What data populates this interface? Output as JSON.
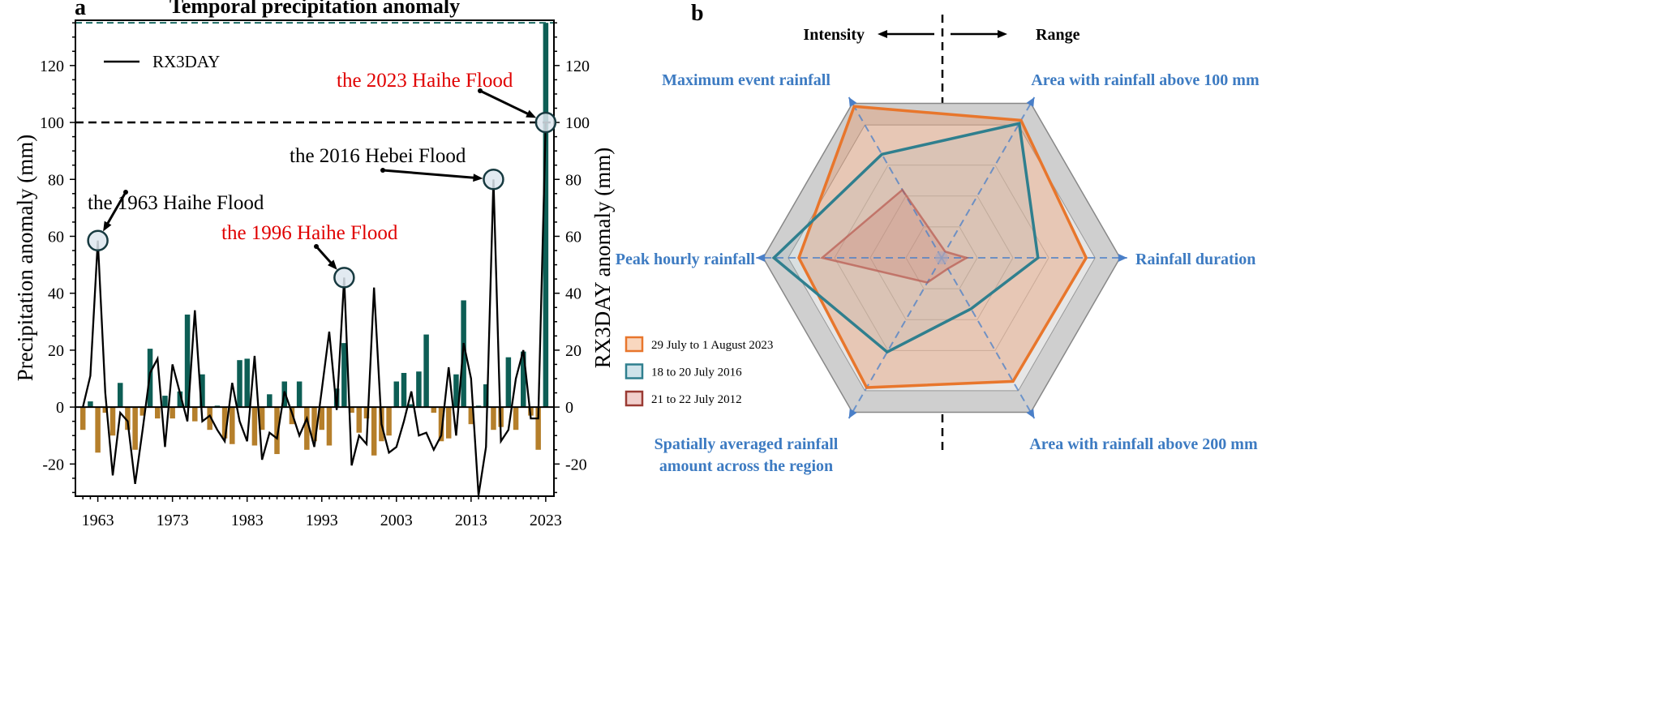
{
  "chart_data": [
    {
      "panel_label": "a",
      "type": "bar+line",
      "title": "Temporal precipitation anomaly",
      "xlabel": "",
      "ylabel": "Precipitation anomaly (mm)",
      "ylabel_right": "RX3DAY anomaly (mm)",
      "xlim": [
        1960,
        2024.1
      ],
      "ylim": [
        -31.3,
        135.9
      ],
      "xticks": [
        1963,
        1973,
        1983,
        1993,
        2003,
        2013,
        2023
      ],
      "yticks": [
        -20,
        0,
        20,
        40,
        60,
        80,
        100,
        120
      ],
      "legend": {
        "entries": [
          "RX3DAY"
        ],
        "placement": "top-left"
      },
      "reference_lines": [
        {
          "y": 100,
          "style": "black-dashed"
        },
        {
          "y": 135,
          "style": "teal-dashed"
        }
      ],
      "colors": {
        "positive": "#0d5e55",
        "negative": "#b57f2b",
        "line": "#000000"
      },
      "years": [
        1961,
        1962,
        1963,
        1964,
        1965,
        1966,
        1967,
        1968,
        1969,
        1970,
        1971,
        1972,
        1973,
        1974,
        1975,
        1976,
        1977,
        1978,
        1979,
        1980,
        1981,
        1982,
        1983,
        1984,
        1985,
        1986,
        1987,
        1988,
        1989,
        1990,
        1991,
        1992,
        1993,
        1994,
        1995,
        1996,
        1997,
        1998,
        1999,
        2000,
        2001,
        2002,
        2003,
        2004,
        2005,
        2006,
        2007,
        2008,
        2009,
        2010,
        2011,
        2012,
        2013,
        2014,
        2015,
        2016,
        2017,
        2018,
        2019,
        2020,
        2021,
        2022,
        2023
      ],
      "precipitation_anomaly": [
        -8,
        2,
        -16,
        -2,
        -10,
        8.5,
        -8,
        -15,
        -3,
        20.5,
        -4,
        4,
        -4,
        5.5,
        32.5,
        -5,
        11.5,
        -8,
        0.5,
        -11,
        -13,
        16.5,
        17,
        -13.5,
        -8,
        4.5,
        -16.5,
        9,
        -6,
        9,
        -15,
        -12,
        -8,
        -13.5,
        6.5,
        22.5,
        -2,
        -9,
        -4,
        -17,
        -12,
        -10,
        9,
        12,
        1,
        12.5,
        25.5,
        -2,
        -12,
        -11,
        11.5,
        37.5,
        -6,
        0.5,
        8,
        -8,
        -7,
        17.5,
        -8,
        19.5,
        -3,
        -15,
        135
      ],
      "rx3day_anomaly": [
        0,
        11,
        58.5,
        5,
        -24,
        -2,
        -5,
        -27,
        -8,
        12,
        17,
        -14,
        15,
        5,
        -5,
        34,
        -5,
        -3,
        -8,
        -12,
        8.5,
        -5,
        -12,
        18,
        -18.5,
        -9,
        -11,
        5.5,
        -2,
        -10,
        -4,
        -14,
        6,
        26.5,
        -1,
        45.5,
        -20.5,
        -10,
        -13,
        42,
        -6,
        -16,
        -14,
        -5,
        5.5,
        -10,
        -9,
        -15,
        -10,
        14,
        -10,
        22.5,
        10,
        -31,
        -14,
        80,
        -12,
        -8,
        10,
        20,
        -4,
        -4,
        100
      ],
      "annotations": [
        {
          "text": "the 1963 Haihe Flood",
          "year": 1963,
          "value": 58.5,
          "color": "#000000"
        },
        {
          "text": "the 1996 Haihe Flood",
          "year": 1996,
          "value": 45.5,
          "color": "#e00000"
        },
        {
          "text": "the 2016 Hebei Flood",
          "year": 2016,
          "value": 80,
          "color": "#000000"
        },
        {
          "text": "the 2023 Haihe Flood",
          "year": 2023,
          "value": 100,
          "color": "#e00000"
        }
      ]
    },
    {
      "panel_label": "b",
      "type": "radar",
      "top_labels": {
        "left": "Intensity",
        "right": "Range"
      },
      "axes": [
        "Rainfall  duration",
        "Area with rainfall above 100 mm",
        "Maximum event rainfall",
        "Peak hourly rainfall",
        "Spatially averaged rainfall amount across the region",
        "Area with rainfall above 200 mm"
      ],
      "axis_label_lines": [
        [
          "Rainfall  duration"
        ],
        [
          "Area with rainfall above 100 mm"
        ],
        [
          "Maximum event rainfall"
        ],
        [
          "Peak hourly rainfall"
        ],
        [
          "Spatially averaged rainfall",
          "amount across the region"
        ],
        [
          "Area with rainfall above 200 mm"
        ]
      ],
      "range": [
        0,
        1
      ],
      "series": [
        {
          "name": "29 July to 1 August 2023",
          "color": "#e8762c",
          "values": [
            0.81,
            0.89,
            0.98,
            0.8,
            0.84,
            0.8
          ]
        },
        {
          "name": "18 to 20 July 2016",
          "color": "#2f7f8e",
          "values": [
            0.54,
            0.87,
            0.67,
            0.94,
            0.61,
            0.33
          ]
        },
        {
          "name": "21 to 22 July 2012",
          "color": "#b8584e",
          "values": [
            0.14,
            0.04,
            0.44,
            0.67,
            0.16,
            0.07
          ]
        }
      ],
      "legend": {
        "placement": "left"
      }
    }
  ]
}
